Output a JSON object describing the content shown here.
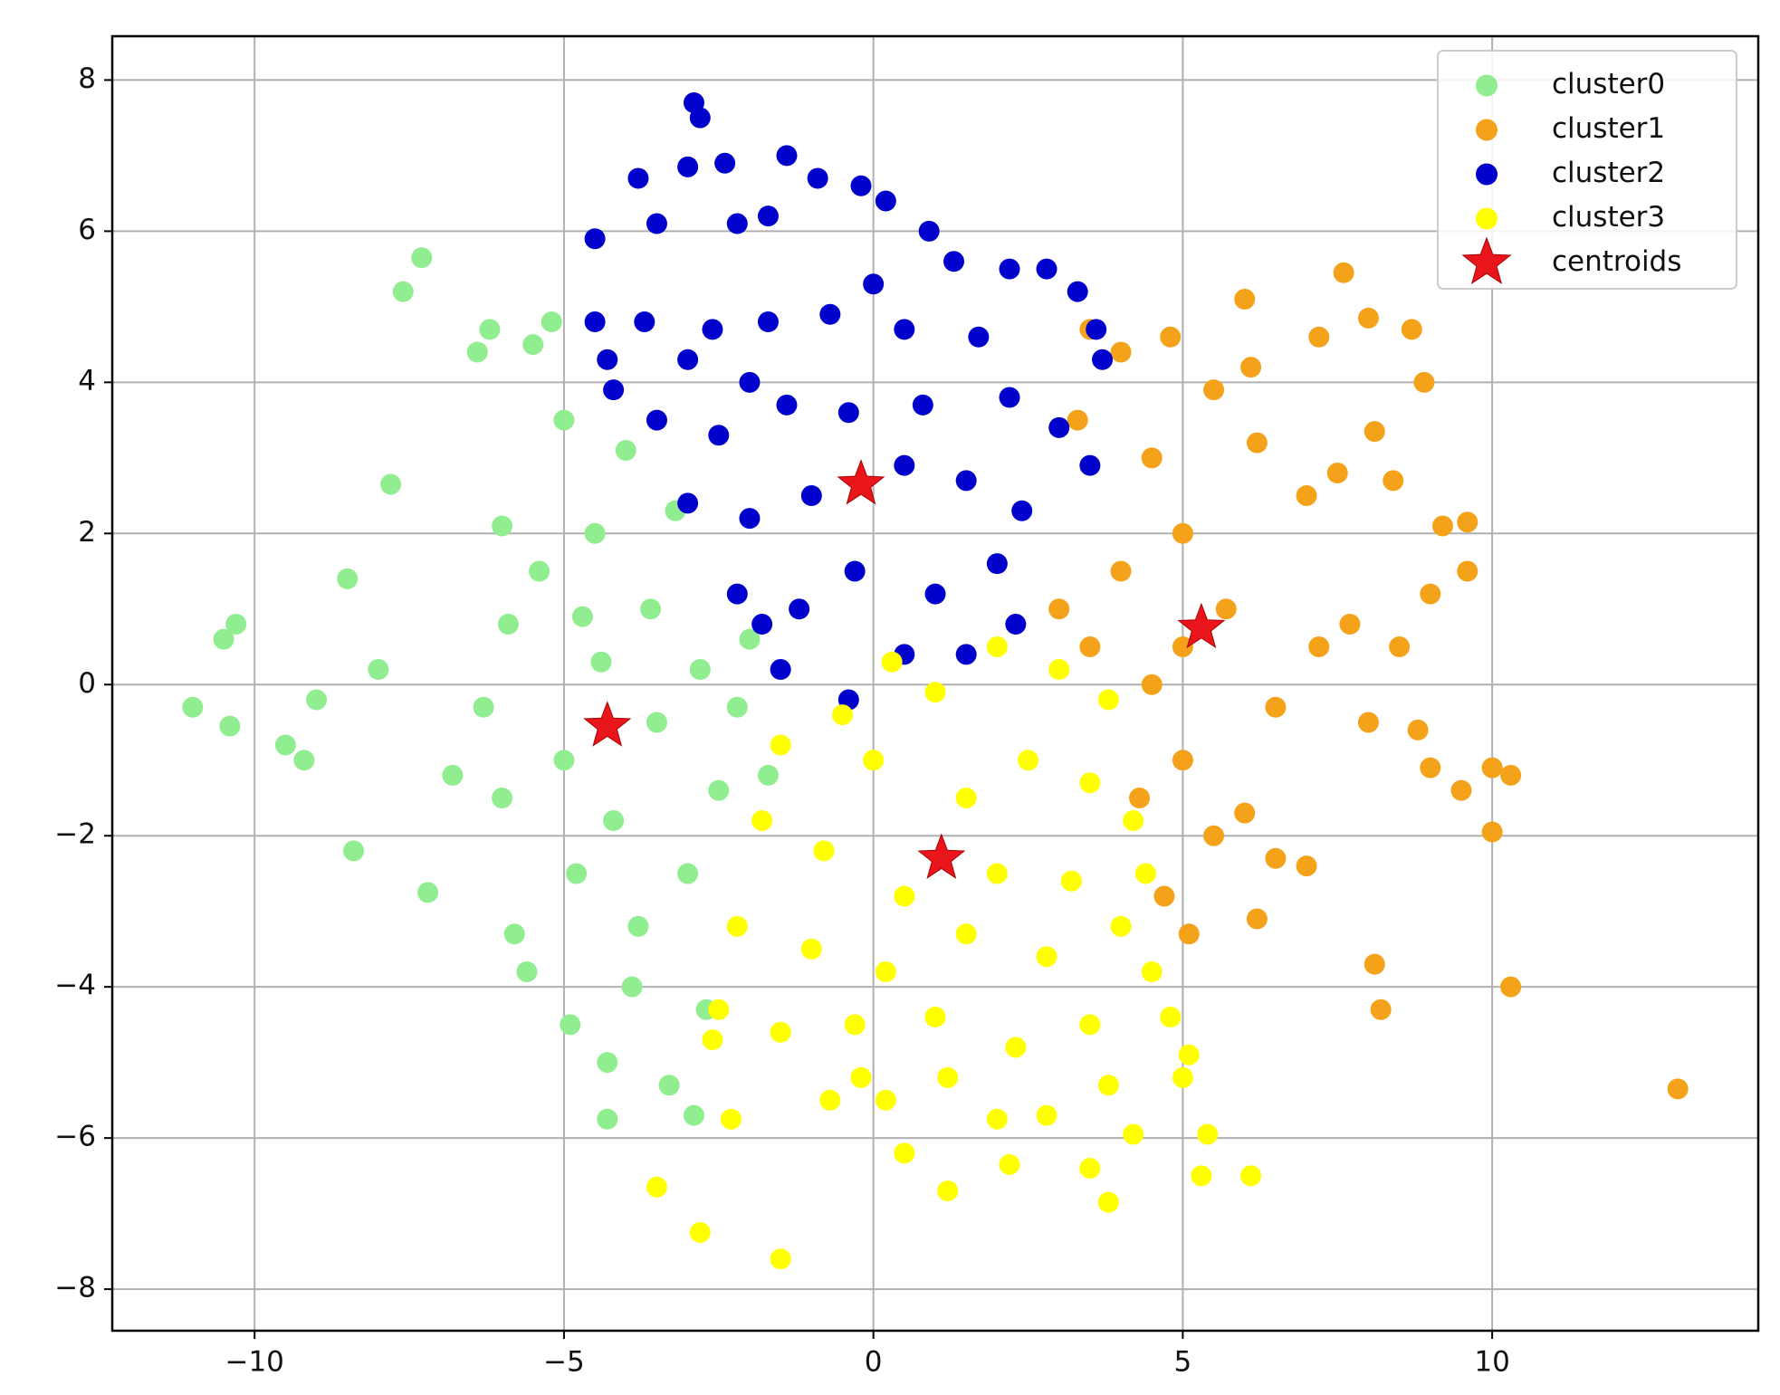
{
  "chart_data": {
    "type": "scatter",
    "legend": "upper right",
    "grid": true,
    "xlim": [
      -12.3,
      14.3
    ],
    "ylim": [
      -8.55,
      8.58
    ],
    "xticks": [
      {
        "value": -10,
        "label": "−10"
      },
      {
        "value": -5,
        "label": "−5"
      },
      0,
      5,
      10
    ],
    "yticks": [
      {
        "value": -8,
        "label": "−8"
      },
      {
        "value": -6,
        "label": "−6"
      },
      {
        "value": -4,
        "label": "−4"
      },
      {
        "value": -2,
        "label": "−2"
      },
      0,
      2,
      4,
      6,
      8
    ],
    "series": [
      {
        "name": "cluster0",
        "color": "#90ee90",
        "marker": "circle",
        "x": [
          -11,
          -10.5,
          -10.3,
          -10.4,
          -9.5,
          -9,
          -8.5,
          -8.4,
          -7.6,
          -7.3,
          -7.2,
          -7.8,
          -6.4,
          -6.2,
          -6,
          -6.3,
          -6,
          -5.8,
          -5.6,
          -5.5,
          -5.2,
          -5,
          -5.4,
          -5,
          -4.8,
          -4.9,
          -4.5,
          -4.4,
          -4.2,
          -4.3,
          -4.3,
          -4,
          -3.8,
          -3.6,
          -3.5,
          -3.3,
          -3.2,
          -3,
          -2.8,
          -2.7,
          -2.9,
          -2.5,
          -2.2,
          -2,
          -1.7,
          -6.8,
          -8,
          -9.2,
          -5.9,
          -4.7,
          -3.9
        ],
        "y": [
          -0.3,
          0.6,
          0.8,
          -0.55,
          -0.8,
          -0.2,
          1.4,
          -2.2,
          5.2,
          5.65,
          -2.75,
          2.65,
          4.4,
          4.7,
          2.1,
          -0.3,
          -1.5,
          -3.3,
          -3.8,
          4.5,
          4.8,
          3.5,
          1.5,
          -1,
          -2.5,
          -4.5,
          2,
          0.3,
          -1.8,
          -5,
          -5.75,
          3.1,
          -3.2,
          1,
          -0.5,
          -5.3,
          2.3,
          -2.5,
          0.2,
          -4.3,
          -5.7,
          -1.4,
          -0.3,
          0.6,
          -1.2,
          -1.2,
          0.2,
          -1,
          0.8,
          0.9,
          -4
        ]
      },
      {
        "name": "cluster1",
        "color": "#f5a21b",
        "marker": "circle",
        "x": [
          3.3,
          3.5,
          4,
          4.5,
          4.8,
          5,
          5.5,
          6,
          6.1,
          6.2,
          7.6,
          7.2,
          8,
          8.7,
          8.9,
          8.1,
          7,
          7.5,
          8.4,
          9.2,
          9.6,
          9.6,
          9,
          3,
          3.5,
          4,
          4.5,
          5,
          5.7,
          6.5,
          7.2,
          7.7,
          8.5,
          8,
          8.8,
          9,
          9.5,
          10,
          10.3,
          10,
          4.3,
          5,
          5.5,
          6,
          6.5,
          7,
          6.2,
          5.1,
          8.1,
          8.2,
          10.3,
          13,
          4.7
        ],
        "y": [
          3.5,
          4.7,
          4.4,
          3,
          4.6,
          2,
          3.9,
          5.1,
          4.2,
          3.2,
          5.45,
          4.6,
          4.85,
          4.7,
          4,
          3.35,
          2.5,
          2.8,
          2.7,
          2.1,
          2.15,
          1.5,
          1.2,
          1,
          0.5,
          1.5,
          0,
          0.5,
          1,
          -0.3,
          0.5,
          0.8,
          0.5,
          -0.5,
          -0.6,
          -1.1,
          -1.4,
          -1.1,
          -1.2,
          -1.95,
          -1.5,
          -1,
          -2,
          -1.7,
          -2.3,
          -2.4,
          -3.1,
          -3.3,
          -3.7,
          -4.3,
          -4,
          -5.35,
          -2.8
        ]
      },
      {
        "name": "cluster2",
        "color": "#0000cd",
        "marker": "circle",
        "x": [
          -2.9,
          -2.8,
          -3.8,
          -3,
          -2.4,
          -1.4,
          -0.9,
          -0.2,
          -4.5,
          -3.5,
          -2.2,
          -1.7,
          0.2,
          0.9,
          1.3,
          2.2,
          2.8,
          -4.5,
          -4.3,
          -3.7,
          -3,
          -2.6,
          -1.7,
          -0.7,
          0.5,
          1.7,
          3.3,
          3.6,
          3.7,
          -3.5,
          -2.5,
          -1.4,
          -0.4,
          0.8,
          2.2,
          3,
          3.5,
          -3,
          -2,
          -1,
          0.5,
          1.5,
          2.4,
          -2.2,
          -1.2,
          -0.3,
          1,
          2,
          2.3,
          -1.5,
          -0.4,
          0.5,
          1.5,
          -1.8,
          -4.2,
          -2,
          0
        ],
        "y": [
          7.7,
          7.5,
          6.7,
          6.85,
          6.9,
          7,
          6.7,
          6.6,
          5.9,
          6.1,
          6.1,
          6.2,
          6.4,
          6,
          5.6,
          5.5,
          5.5,
          4.8,
          4.3,
          4.8,
          4.3,
          4.7,
          4.8,
          4.9,
          4.7,
          4.6,
          5.2,
          4.7,
          4.3,
          3.5,
          3.3,
          3.7,
          3.6,
          3.7,
          3.8,
          3.4,
          2.9,
          2.4,
          2.2,
          2.5,
          2.9,
          2.7,
          2.3,
          1.2,
          1,
          1.5,
          1.2,
          1.6,
          0.8,
          0.2,
          -0.2,
          0.4,
          0.4,
          0.8,
          3.9,
          4,
          5.3
        ]
      },
      {
        "name": "cluster3",
        "color": "#ffff00",
        "marker": "circle",
        "x": [
          0.3,
          1,
          2,
          3,
          3.8,
          -0.5,
          -1.5,
          0,
          1.5,
          2.5,
          3.5,
          4.2,
          -1.8,
          -0.8,
          0.5,
          2,
          3.2,
          4.4,
          -2.2,
          -1,
          0.2,
          1.5,
          2.8,
          4,
          4.5,
          -2.5,
          -1.5,
          -0.3,
          1,
          2.3,
          3.5,
          4.8,
          5.1,
          -2.6,
          -2.3,
          -0.7,
          0.2,
          1.2,
          2,
          2.8,
          3.8,
          4.2,
          5,
          5.4,
          5.3,
          6.1,
          0.5,
          2.2,
          3.5,
          3.8,
          -3.5,
          -2.8,
          -1.5,
          1.2,
          -0.2
        ],
        "y": [
          0.3,
          -0.1,
          0.5,
          0.2,
          -0.2,
          -0.4,
          -0.8,
          -1,
          -1.5,
          -1,
          -1.3,
          -1.8,
          -1.8,
          -2.2,
          -2.8,
          -2.5,
          -2.6,
          -2.5,
          -3.2,
          -3.5,
          -3.8,
          -3.3,
          -3.6,
          -3.2,
          -3.8,
          -4.3,
          -4.6,
          -4.5,
          -4.4,
          -4.8,
          -4.5,
          -4.4,
          -4.9,
          -4.7,
          -5.75,
          -5.5,
          -5.5,
          -5.2,
          -5.75,
          -5.7,
          -5.3,
          -5.95,
          -5.2,
          -5.95,
          -6.5,
          -6.5,
          -6.2,
          -6.35,
          -6.4,
          -6.85,
          -6.65,
          -7.25,
          -7.6,
          -6.7,
          -5.2
        ]
      },
      {
        "name": "centroids",
        "color": "#e8161b",
        "marker": "star",
        "x": [
          -4.3,
          -0.2,
          5.3,
          1.1
        ],
        "y": [
          -0.55,
          2.65,
          0.75,
          -2.3
        ]
      }
    ]
  }
}
